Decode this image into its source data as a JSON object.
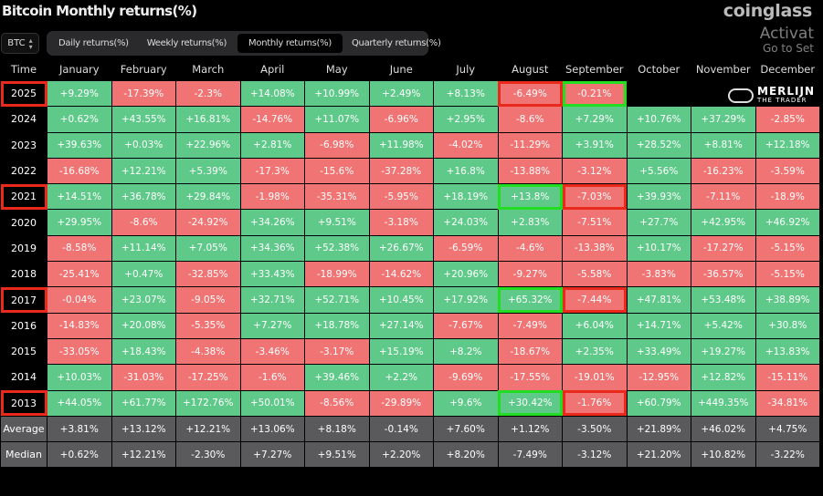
{
  "header": {
    "title": "Bitcoin Monthly returns(%)",
    "brand": "coinglass"
  },
  "asset_select": {
    "value": "BTC",
    "icon": "chevron-updown-icon"
  },
  "tabs": [
    {
      "label": "Daily returns(%)",
      "active": false
    },
    {
      "label": "Weekly returns(%)",
      "active": false
    },
    {
      "label": "Monthly returns(%)",
      "active": true
    },
    {
      "label": "Quarterly returns(%)",
      "active": false
    }
  ],
  "colors": {
    "positive": "#5fc98a",
    "negative": "#f07474",
    "stat": "#5a5a5c",
    "highlight_red": "#e8291b",
    "highlight_green": "#22dd22"
  },
  "table": {
    "columns": [
      "Time",
      "January",
      "February",
      "March",
      "April",
      "May",
      "June",
      "July",
      "August",
      "September",
      "October",
      "November",
      "December"
    ],
    "rows": [
      {
        "label": "2025",
        "highlight": true,
        "values": [
          "+9.29%",
          "-17.39%",
          "-2.3%",
          "+14.08%",
          "+10.99%",
          "+2.49%",
          "+8.13%",
          "-6.49%",
          "-0.21%",
          "",
          "",
          ""
        ],
        "hl": {
          "7": "red",
          "8": "green"
        }
      },
      {
        "label": "2024",
        "values": [
          "+0.62%",
          "+43.55%",
          "+16.81%",
          "-14.76%",
          "+11.07%",
          "-6.96%",
          "+2.95%",
          "-8.6%",
          "+7.29%",
          "+10.76%",
          "+37.29%",
          "-2.85%"
        ]
      },
      {
        "label": "2023",
        "values": [
          "+39.63%",
          "+0.03%",
          "+22.96%",
          "+2.81%",
          "-6.98%",
          "+11.98%",
          "-4.02%",
          "-11.29%",
          "+3.91%",
          "+28.52%",
          "+8.81%",
          "+12.18%"
        ]
      },
      {
        "label": "2022",
        "values": [
          "-16.68%",
          "+12.21%",
          "+5.39%",
          "-17.3%",
          "-15.6%",
          "-37.28%",
          "+16.8%",
          "-13.88%",
          "-3.12%",
          "+5.56%",
          "-16.23%",
          "-3.59%"
        ]
      },
      {
        "label": "2021",
        "highlight": true,
        "values": [
          "+14.51%",
          "+36.78%",
          "+29.84%",
          "-1.98%",
          "-35.31%",
          "-5.95%",
          "+18.19%",
          "+13.8%",
          "-7.03%",
          "+39.93%",
          "-7.11%",
          "-18.9%"
        ],
        "hl": {
          "7": "green",
          "8": "red"
        }
      },
      {
        "label": "2020",
        "values": [
          "+29.95%",
          "-8.6%",
          "-24.92%",
          "+34.26%",
          "+9.51%",
          "-3.18%",
          "+24.03%",
          "+2.83%",
          "-7.51%",
          "+27.7%",
          "+42.95%",
          "+46.92%"
        ]
      },
      {
        "label": "2019",
        "values": [
          "-8.58%",
          "+11.14%",
          "+7.05%",
          "+34.36%",
          "+52.38%",
          "+26.67%",
          "-6.59%",
          "-4.6%",
          "-13.38%",
          "+10.17%",
          "-17.27%",
          "-5.15%"
        ]
      },
      {
        "label": "2018",
        "values": [
          "-25.41%",
          "+0.47%",
          "-32.85%",
          "+33.43%",
          "-18.99%",
          "-14.62%",
          "+20.96%",
          "-9.27%",
          "-5.58%",
          "-3.83%",
          "-36.57%",
          "-5.15%"
        ]
      },
      {
        "label": "2017",
        "highlight": true,
        "values": [
          "-0.04%",
          "+23.07%",
          "-9.05%",
          "+32.71%",
          "+52.71%",
          "+10.45%",
          "+17.92%",
          "+65.32%",
          "-7.44%",
          "+47.81%",
          "+53.48%",
          "+38.89%"
        ],
        "hl": {
          "7": "green",
          "8": "red"
        }
      },
      {
        "label": "2016",
        "values": [
          "-14.83%",
          "+20.08%",
          "-5.35%",
          "+7.27%",
          "+18.78%",
          "+27.14%",
          "-7.67%",
          "-7.49%",
          "+6.04%",
          "+14.71%",
          "+5.42%",
          "+30.8%"
        ]
      },
      {
        "label": "2015",
        "values": [
          "-33.05%",
          "+18.43%",
          "-4.38%",
          "-3.46%",
          "-3.17%",
          "+15.19%",
          "+8.2%",
          "-18.67%",
          "+2.35%",
          "+33.49%",
          "+19.27%",
          "+13.83%"
        ]
      },
      {
        "label": "2014",
        "values": [
          "+10.03%",
          "-31.03%",
          "-17.25%",
          "-1.6%",
          "+39.46%",
          "+2.2%",
          "-9.69%",
          "-17.55%",
          "-19.01%",
          "-12.95%",
          "+12.82%",
          "-15.11%"
        ]
      },
      {
        "label": "2013",
        "highlight": true,
        "values": [
          "+44.05%",
          "+61.77%",
          "+172.76%",
          "+50.01%",
          "-8.56%",
          "-29.89%",
          "+9.6%",
          "+30.42%",
          "-1.76%",
          "+60.79%",
          "+449.35%",
          "-34.81%"
        ],
        "hl": {
          "7": "green",
          "8": "red"
        }
      },
      {
        "label": "Average",
        "stat": true,
        "values": [
          "+3.81%",
          "+13.12%",
          "+12.21%",
          "+13.06%",
          "+8.18%",
          "-0.14%",
          "+7.60%",
          "+1.12%",
          "-3.50%",
          "+21.89%",
          "+46.02%",
          "+4.75%"
        ]
      },
      {
        "label": "Median",
        "stat": true,
        "values": [
          "+0.62%",
          "+12.21%",
          "-2.30%",
          "+7.27%",
          "+9.51%",
          "+2.20%",
          "+8.20%",
          "-7.49%",
          "-3.12%",
          "+21.20%",
          "+10.82%",
          "-3.22%"
        ]
      }
    ]
  },
  "watermark": {
    "brand_top": "MERLIJN",
    "brand_bottom": "THE TRADER",
    "os_line1": "Activat",
    "os_line2": "Go to Set"
  }
}
